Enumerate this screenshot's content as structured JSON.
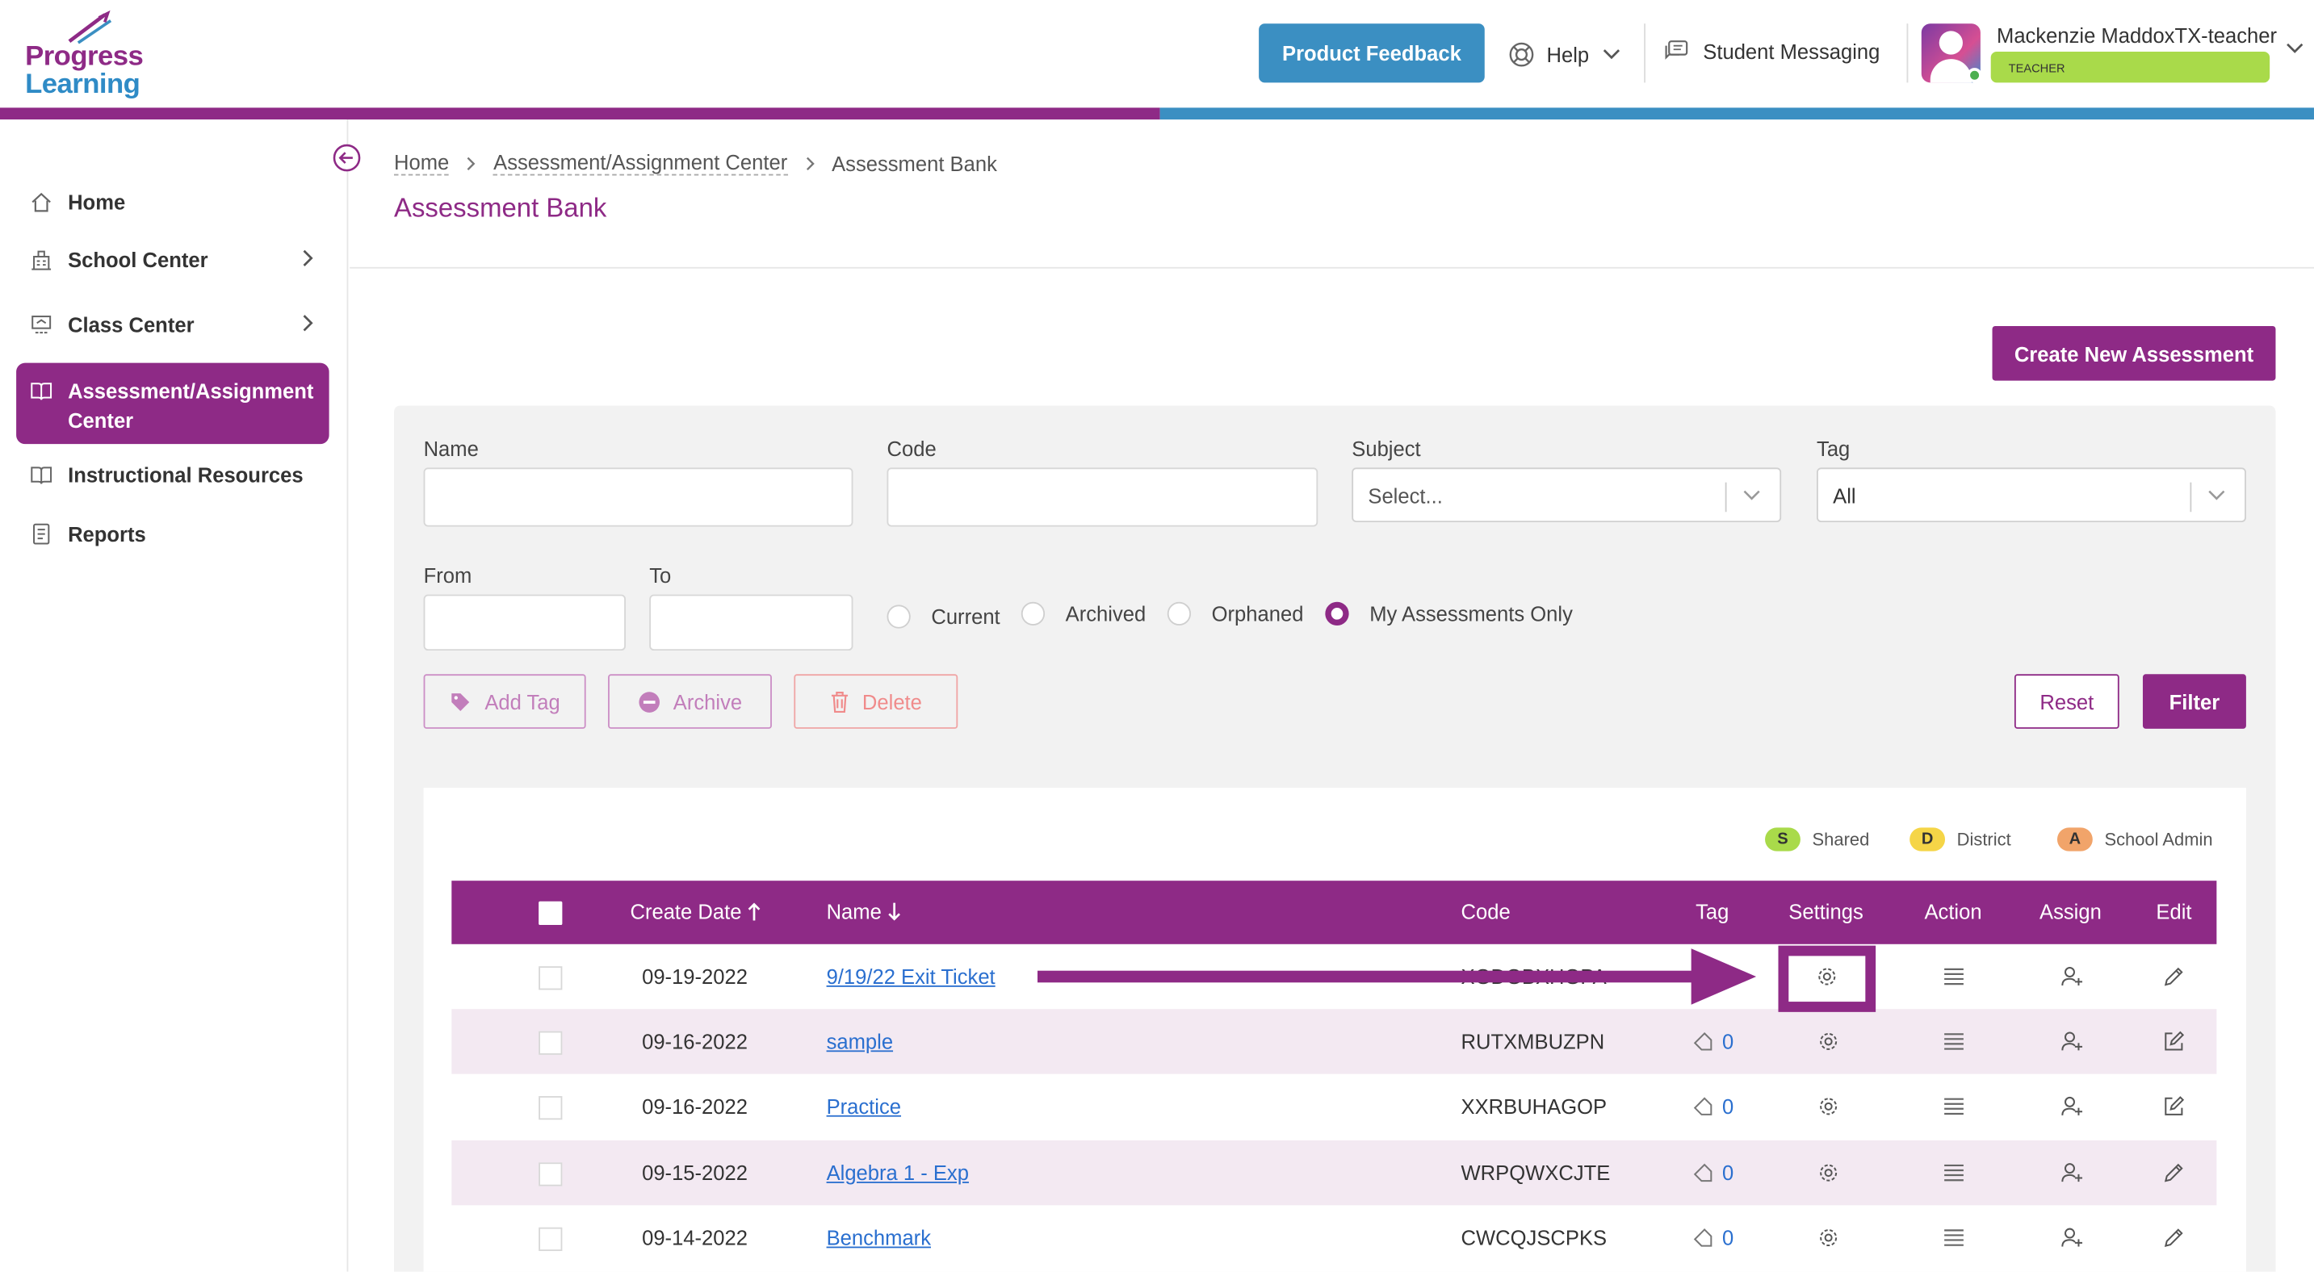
{
  "app": {
    "logo_line1": "Progress",
    "logo_line2": "Learning",
    "brand_purple": "#8e2a86",
    "brand_blue": "#3b8fc2"
  },
  "header": {
    "feedback_label": "Product Feedback",
    "help_label": "Help",
    "messaging_label": "Student Messaging",
    "user_name": "Mackenzie MaddoxTX-teacher",
    "user_role": "TEACHER"
  },
  "sidebar": {
    "items": [
      {
        "label": "Home",
        "icon": "home-icon"
      },
      {
        "label": "School Center",
        "icon": "school-icon"
      },
      {
        "label": "Class Center",
        "icon": "class-icon"
      },
      {
        "label": "Assessment/Assignment Center",
        "icon": "book-icon",
        "active": true
      },
      {
        "label": "Instructional Resources",
        "icon": "book-open-icon"
      },
      {
        "label": "Reports",
        "icon": "report-icon"
      }
    ]
  },
  "breadcrumb": {
    "items": [
      "Home",
      "Assessment/Assignment Center",
      "Assessment Bank"
    ]
  },
  "page": {
    "title": "Assessment Bank",
    "create_label": "Create New Assessment"
  },
  "filters": {
    "name_label": "Name",
    "name_value": "",
    "code_label": "Code",
    "code_value": "",
    "subject_label": "Subject",
    "subject_value": "Select...",
    "tag_label": "Tag",
    "tag_value": "All",
    "from_label": "From",
    "from_value": "",
    "to_label": "To",
    "to_value": "",
    "radios": [
      {
        "label": "Current",
        "checked": false
      },
      {
        "label": "Archived",
        "checked": false
      },
      {
        "label": "Orphaned",
        "checked": false
      },
      {
        "label": "My Assessments Only",
        "checked": true
      }
    ],
    "add_tag_label": "Add Tag",
    "archive_label": "Archive",
    "delete_label": "Delete",
    "reset_label": "Reset",
    "filter_label": "Filter"
  },
  "legend": {
    "shared_badge": "S",
    "shared_label": "Shared",
    "district_badge": "D",
    "district_label": "District",
    "school_badge": "A",
    "school_label": "School Admin"
  },
  "table": {
    "columns": [
      "Create Date",
      "Name",
      "Code",
      "Tag",
      "Settings",
      "Action",
      "Assign",
      "Edit"
    ],
    "rows": [
      {
        "date": "09-19-2022",
        "name": "9/19/22 Exit Ticket",
        "code": "XGDGBXHGPA",
        "tag": ""
      },
      {
        "date": "09-16-2022",
        "name": "sample",
        "code": "RUTXMBUZPN",
        "tag": "0"
      },
      {
        "date": "09-16-2022",
        "name": "Practice",
        "code": "XXRBUHAGOP",
        "tag": "0"
      },
      {
        "date": "09-15-2022",
        "name": "Algebra 1 - Exp",
        "code": "WRPQWXCJTE",
        "tag": "0"
      },
      {
        "date": "09-14-2022",
        "name": "Benchmark",
        "code": "CWCQJSCPKS",
        "tag": "0"
      }
    ]
  }
}
